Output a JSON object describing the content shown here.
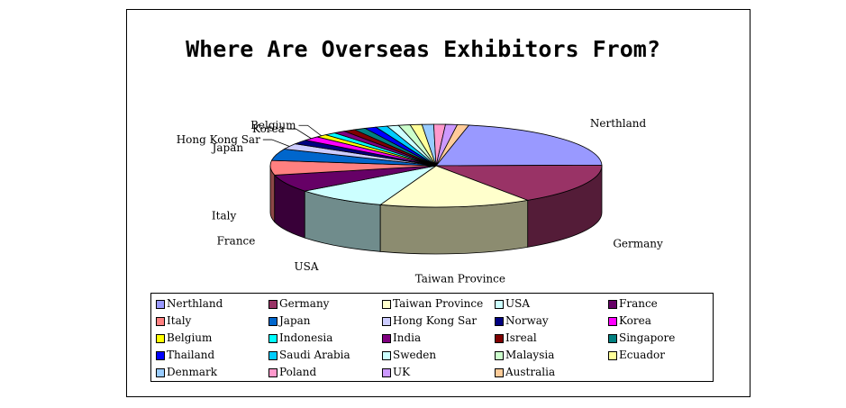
{
  "chart_data": {
    "type": "pie",
    "title": "Where Are Overseas Exhibitors From?",
    "legend_position": "bottom",
    "series": [
      {
        "name": "Nerthland",
        "value": 19.0,
        "color": "#9999ff",
        "labeled": true
      },
      {
        "name": "Germany",
        "value": 14.0,
        "color": "#993366",
        "labeled": true
      },
      {
        "name": "Taiwan Province",
        "value": 13.0,
        "color": "#ffffcc",
        "labeled": true
      },
      {
        "name": "USA",
        "value": 8.0,
        "color": "#ccffff",
        "labeled": true
      },
      {
        "name": "France",
        "value": 6.0,
        "color": "#660066",
        "labeled": true
      },
      {
        "name": "Italy",
        "value": 5.0,
        "color": "#ff8080",
        "labeled": true
      },
      {
        "name": "Japan",
        "value": 4.0,
        "color": "#0066cc",
        "labeled": true
      },
      {
        "name": "Hong Kong Sar",
        "value": 2.0,
        "color": "#ccccff",
        "labeled": true
      },
      {
        "name": "Norway",
        "value": 1.5,
        "color": "#000080",
        "labeled": false
      },
      {
        "name": "Korea",
        "value": 1.5,
        "color": "#ff00ff",
        "labeled": true
      },
      {
        "name": "Belgium",
        "value": 1.0,
        "color": "#ffff00",
        "labeled": true
      },
      {
        "name": " Indonesia",
        "value": 1.0,
        "color": "#00ffff",
        "labeled": false
      },
      {
        "name": "India",
        "value": 1.0,
        "color": "#800080",
        "labeled": false
      },
      {
        "name": "Isreal",
        "value": 1.0,
        "color": "#800000",
        "labeled": false
      },
      {
        "name": "Singapore",
        "value": 1.0,
        "color": "#008080",
        "labeled": false
      },
      {
        "name": "Thailand",
        "value": 1.0,
        "color": "#0000ff",
        "labeled": false
      },
      {
        "name": "Saudi Arabia",
        "value": 1.0,
        "color": "#00ccff",
        "labeled": false
      },
      {
        "name": "Sweden",
        "value": 1.0,
        "color": "#ccffff",
        "labeled": false
      },
      {
        "name": "Malaysia",
        "value": 1.0,
        "color": "#ccffcc",
        "labeled": false
      },
      {
        "name": "Ecuador",
        "value": 1.0,
        "color": "#ffff99",
        "labeled": false
      },
      {
        "name": "Denmark",
        "value": 1.0,
        "color": "#99ccff",
        "labeled": false
      },
      {
        "name": "Poland",
        "value": 1.0,
        "color": "#ff99cc",
        "labeled": false
      },
      {
        "name": "UK",
        "value": 1.0,
        "color": "#cc99ff",
        "labeled": false
      },
      {
        "name": "Australia",
        "value": 1.0,
        "color": "#ffcc99",
        "labeled": false
      }
    ]
  }
}
